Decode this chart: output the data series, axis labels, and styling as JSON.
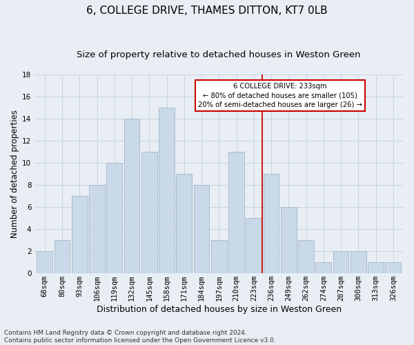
{
  "title": "6, COLLEGE DRIVE, THAMES DITTON, KT7 0LB",
  "subtitle": "Size of property relative to detached houses in Weston Green",
  "xlabel": "Distribution of detached houses by size in Weston Green",
  "ylabel": "Number of detached properties",
  "footer_line1": "Contains HM Land Registry data © Crown copyright and database right 2024.",
  "footer_line2": "Contains public sector information licensed under the Open Government Licence v3.0.",
  "categories": [
    "68sqm",
    "80sqm",
    "93sqm",
    "106sqm",
    "119sqm",
    "132sqm",
    "145sqm",
    "158sqm",
    "171sqm",
    "184sqm",
    "197sqm",
    "210sqm",
    "223sqm",
    "236sqm",
    "249sqm",
    "262sqm",
    "274sqm",
    "287sqm",
    "300sqm",
    "313sqm",
    "326sqm"
  ],
  "values": [
    2,
    3,
    7,
    8,
    10,
    14,
    11,
    15,
    9,
    8,
    3,
    11,
    5,
    9,
    6,
    3,
    1,
    2,
    2,
    1,
    1
  ],
  "bar_color": "#c9d9ea",
  "bar_edge_color": "#aabbcc",
  "vline_color": "#cc0000",
  "annotation_title": "6 COLLEGE DRIVE: 233sqm",
  "annotation_line2": "← 80% of detached houses are smaller (105)",
  "annotation_line3": "20% of semi-detached houses are larger (26) →",
  "annotation_box_edge_color": "#cc0000",
  "annotation_bg": "#ffffff",
  "ylim": [
    0,
    18
  ],
  "yticks": [
    0,
    2,
    4,
    6,
    8,
    10,
    12,
    14,
    16,
    18
  ],
  "grid_color": "#c8d4e0",
  "bg_color": "#e8eef4",
  "title_fontsize": 11,
  "subtitle_fontsize": 9.5,
  "ylabel_fontsize": 8.5,
  "xlabel_fontsize": 9,
  "tick_fontsize": 7.5,
  "footer_fontsize": 6.5
}
